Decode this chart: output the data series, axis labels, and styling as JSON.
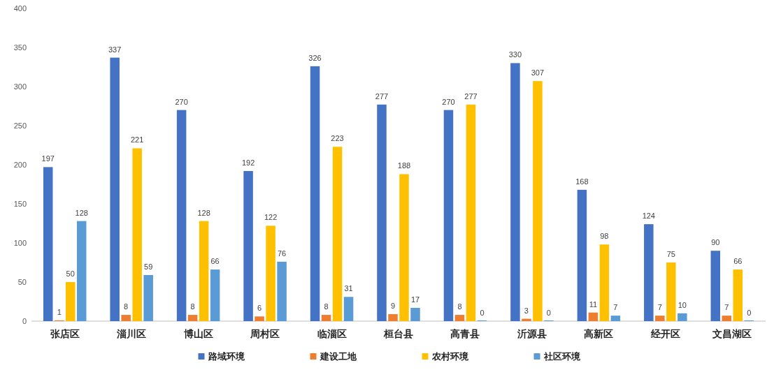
{
  "chart_data": {
    "type": "bar",
    "categories": [
      "张店区",
      "淄川区",
      "博山区",
      "周村区",
      "临淄区",
      "桓台县",
      "高青县",
      "沂源县",
      "高新区",
      "经开区",
      "文昌湖区"
    ],
    "series": [
      {
        "name": "路域环境",
        "color": "#4472c4",
        "values": [
          197,
          337,
          270,
          192,
          326,
          277,
          270,
          330,
          168,
          124,
          90
        ]
      },
      {
        "name": "建设工地",
        "color": "#ed7d31",
        "values": [
          1,
          8,
          8,
          6,
          8,
          9,
          8,
          3,
          11,
          7,
          7
        ]
      },
      {
        "name": "农村环境",
        "color": "#ffc000",
        "values": [
          50,
          221,
          128,
          122,
          223,
          188,
          277,
          307,
          98,
          75,
          66
        ]
      },
      {
        "name": "社区环境",
        "color": "#5b9bd5",
        "values": [
          128,
          59,
          66,
          76,
          31,
          17,
          0,
          0,
          7,
          10,
          0
        ]
      }
    ],
    "ylim": [
      0,
      400
    ],
    "yticks": [
      0,
      50,
      100,
      150,
      200,
      250,
      300,
      350,
      400
    ],
    "legend": "bottom",
    "data_labels": true
  }
}
